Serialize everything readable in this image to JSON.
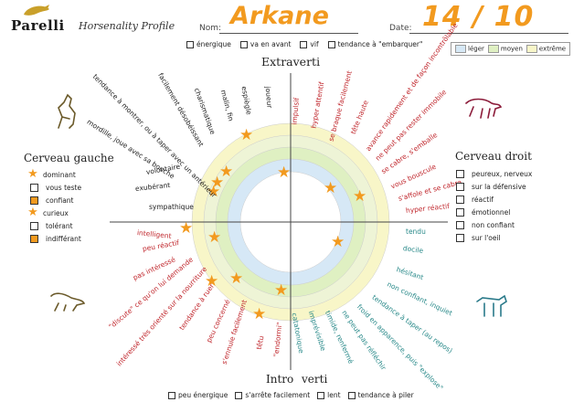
{
  "header": {
    "logo": "Parelli",
    "subtitle": "Horsenality Profile",
    "nom_label": "Nom:",
    "nom_value": "Arkane",
    "date_label": "Date:",
    "date_value": "14 / 10"
  },
  "top_checks": [
    "énergique",
    "va en avant",
    "vif",
    "tendance à \"embarquer\""
  ],
  "bottom_checks": [
    "peu énergique",
    "s'arrête facilement",
    "lent",
    "tendance à piler"
  ],
  "legend": {
    "items": [
      {
        "label": "léger",
        "color": "#d6e8f6"
      },
      {
        "label": "moyen",
        "color": "#dff0c2"
      },
      {
        "label": "extrême",
        "color": "#f8f6c8"
      }
    ]
  },
  "axes": {
    "top": "Extraverti",
    "bottom_left": "Intro",
    "bottom_right": "verti"
  },
  "left_panel": {
    "title": "Cerveau gauche",
    "items": [
      {
        "icon": "star",
        "label": "dominant"
      },
      {
        "icon": "box",
        "label": "vous teste"
      },
      {
        "icon": "box-orange",
        "label": "confiant"
      },
      {
        "icon": "star",
        "label": "curieux"
      },
      {
        "icon": "box",
        "label": "tolérant"
      },
      {
        "icon": "box-orange",
        "label": "indifférant"
      }
    ]
  },
  "right_panel": {
    "title": "Cerveau droit",
    "items": [
      "peureux, nerveux",
      "sur la défensive",
      "réactif",
      "émotionnel",
      "non confiant",
      "sur l'oeil"
    ]
  },
  "colors": {
    "accent": "#f29a1f",
    "red_text": "#c0262c",
    "teal_text": "#2a8a8a",
    "black_text": "#222222"
  },
  "traits": {
    "top_left": [
      "sympathique",
      "exubérant",
      "volontaire",
      "mordille, joue avec sa bouche",
      "tendance à montrer, ou à taper avec un antérieur",
      "facilement désobéissant",
      "charismatique",
      "malin, fin",
      "espiègle",
      "joueur"
    ],
    "top_right": [
      "impulsif",
      "hyper attentif",
      "se braque facilement",
      "tête haute",
      "avance rapidement et de façon incontrôlable",
      "ne peut pas rester immobile",
      "se cabre, s'emballe",
      "vous bouscule",
      "s'affole et se cabre",
      "hyper réactif"
    ],
    "bottom_left": [
      "intelligent",
      "peu réactif",
      "pas intéressé",
      "\"discute\" ce qu'on lui demande",
      "intéressé très orienté sur la nourriture",
      "tendance à ruer",
      "peu concerné",
      "s'ennuie facilement",
      "têtu",
      "\"endormi\""
    ],
    "bottom_right": [
      "tendu",
      "docile",
      "hésitant",
      "non confiant, inquiet",
      "tendance à taper (au repos)",
      "froid en apparence, puis \"explose\"",
      "ne peut pas réfléchir",
      "timide, renfermé",
      "imprévisible",
      "catatonique"
    ]
  }
}
